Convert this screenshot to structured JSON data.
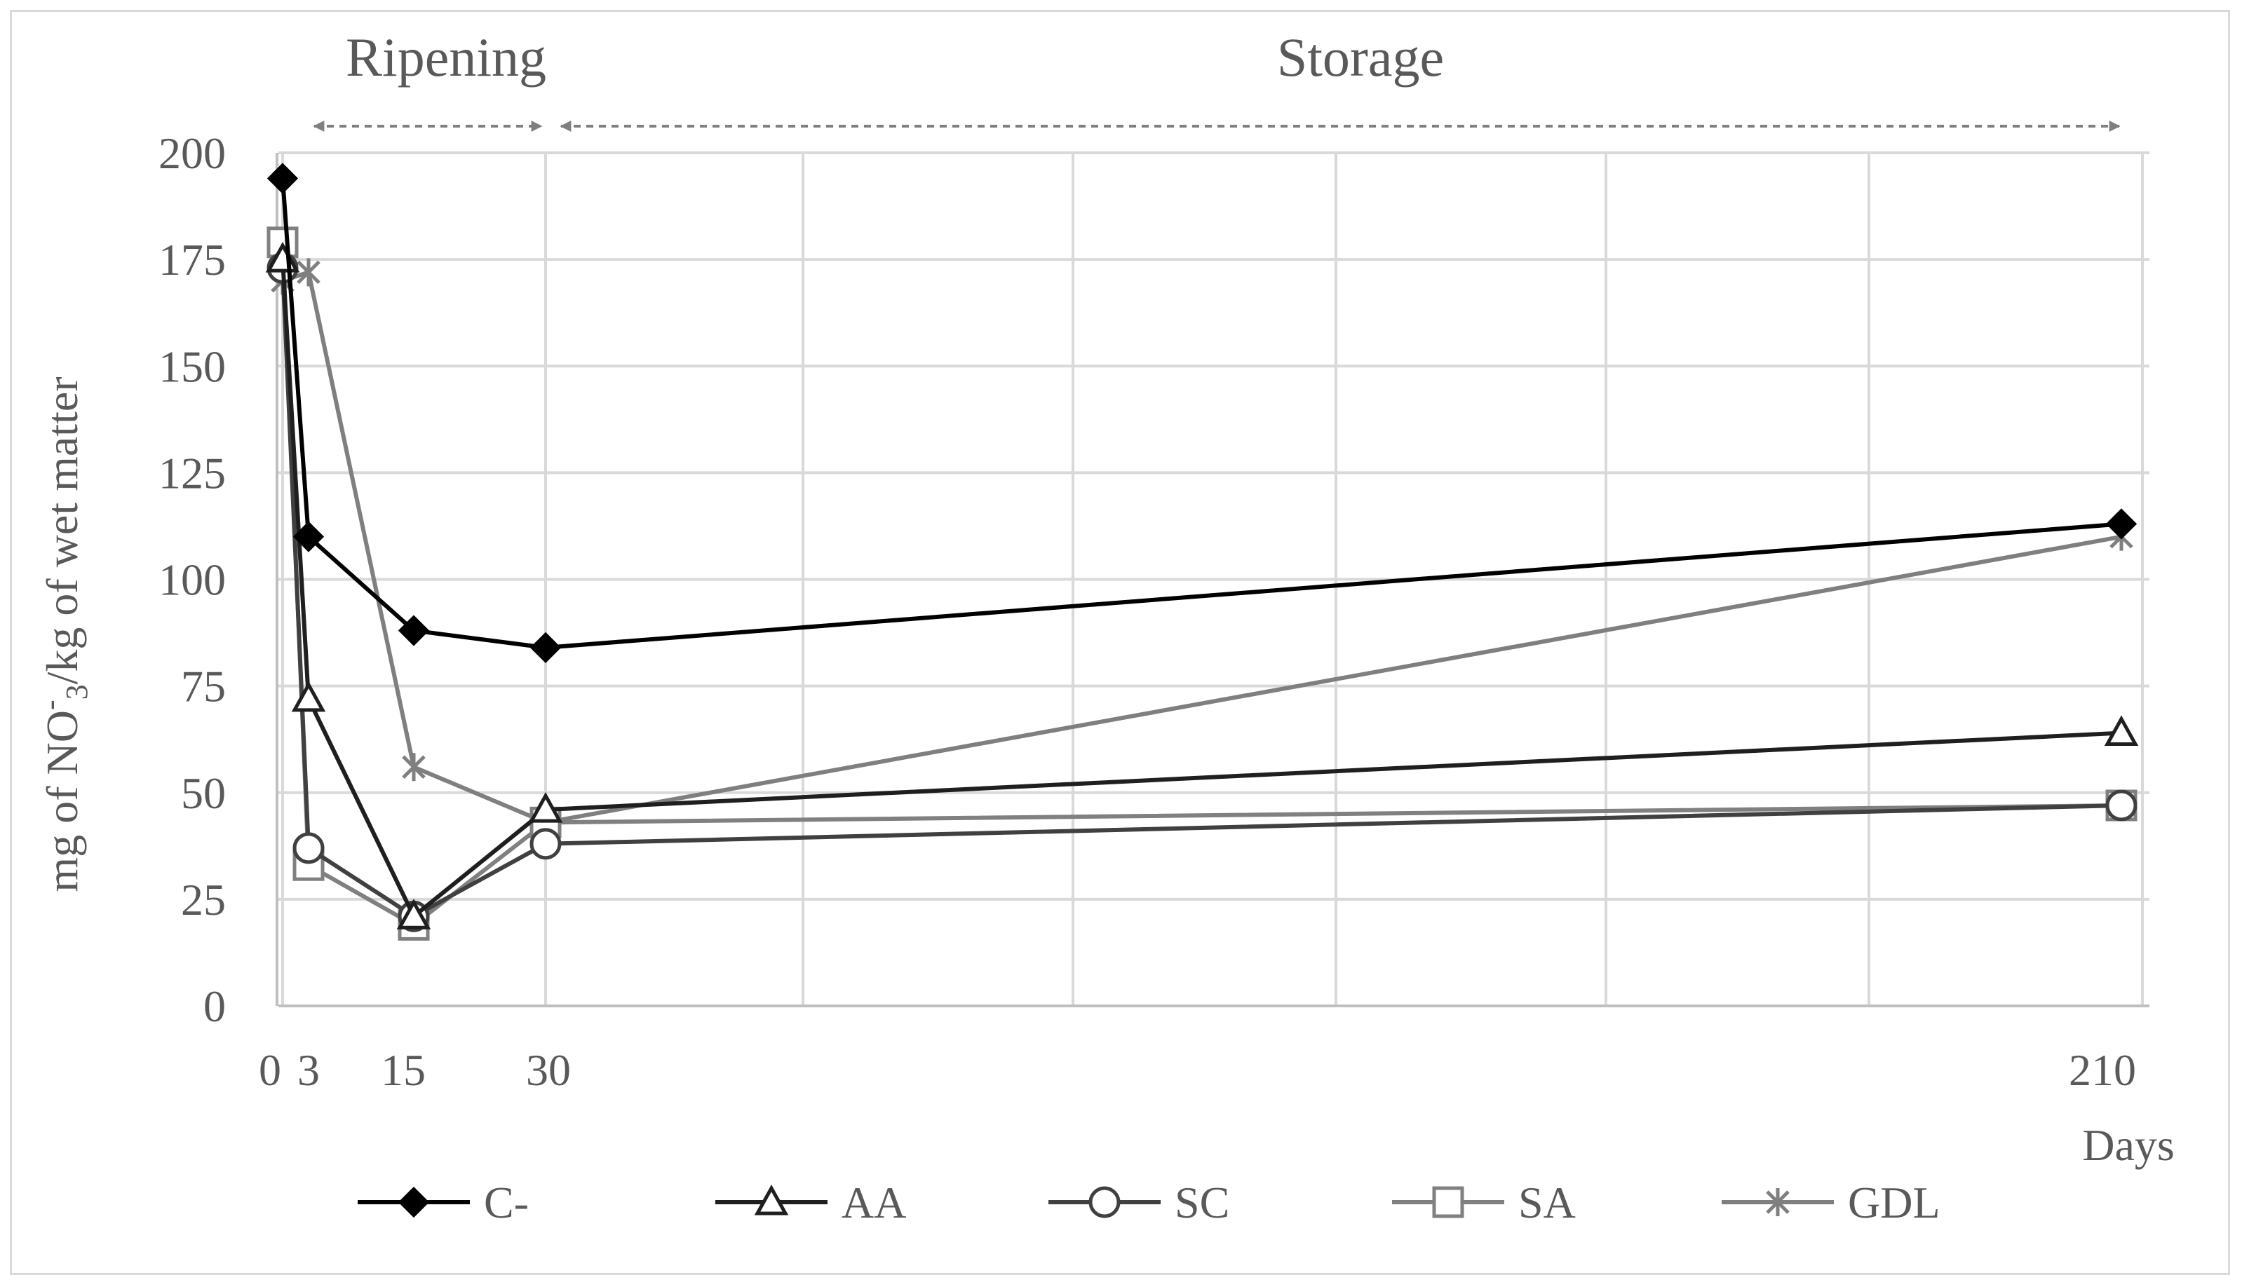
{
  "chart_data": {
    "type": "line",
    "ylabel_parts": {
      "pre": "mg of NO",
      "sub": "3",
      "sup": "-",
      "post": "/kg of wet matter"
    },
    "xlabel": "Days",
    "ylim": [
      0,
      200
    ],
    "yticks": [
      0,
      25,
      50,
      75,
      100,
      125,
      150,
      175,
      200
    ],
    "x_tick_labels": [
      "0",
      "3",
      "15",
      "30",
      "210"
    ],
    "phases": [
      {
        "label": "Ripening",
        "from": 3,
        "to": 30
      },
      {
        "label": "Storage",
        "from": 30,
        "to": 210
      }
    ],
    "legend_position": "bottom",
    "grid": true,
    "series": [
      {
        "name": "C-",
        "marker": "diamond",
        "color": "#000000",
        "x": [
          0,
          3,
          15,
          30,
          210
        ],
        "y": [
          194,
          110,
          88,
          84,
          113
        ]
      },
      {
        "name": "AA",
        "marker": "triangle",
        "color": "#1f1f1f",
        "x": [
          0,
          3,
          15,
          30,
          210
        ],
        "y": [
          175,
          72,
          21,
          46,
          64
        ]
      },
      {
        "name": "SC",
        "marker": "circle",
        "color": "#404040",
        "x": [
          0,
          3,
          15,
          30,
          210
        ],
        "y": [
          173,
          37,
          21,
          38,
          47
        ]
      },
      {
        "name": "SA",
        "marker": "square",
        "color": "#808080",
        "x": [
          0,
          3,
          15,
          30,
          210
        ],
        "y": [
          179,
          33,
          19,
          43,
          47
        ]
      },
      {
        "name": "GDL",
        "marker": "star",
        "color": "#7f7f7f",
        "x": [
          0,
          3,
          15,
          30,
          210
        ],
        "y": [
          170,
          172,
          56,
          43,
          110
        ]
      }
    ]
  }
}
